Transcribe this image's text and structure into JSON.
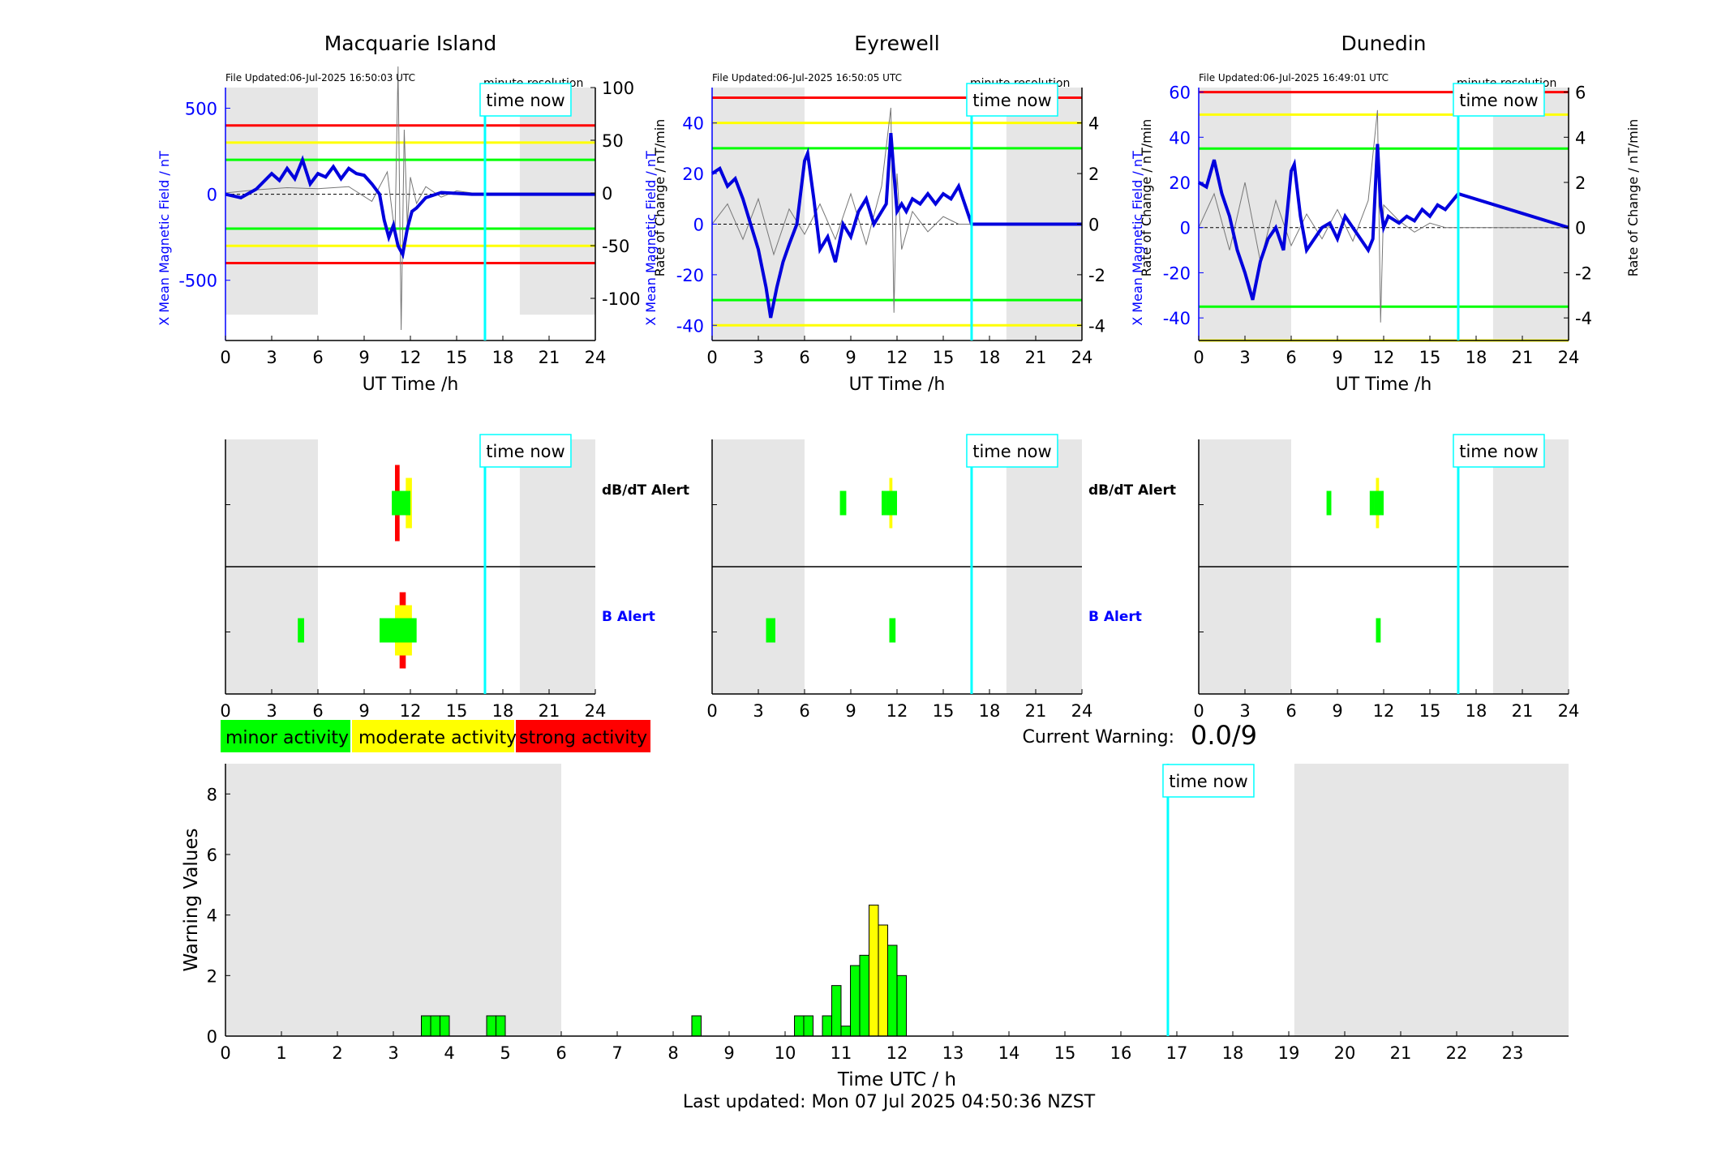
{
  "footer": "Last updated: Mon 07 Jul 2025 04:50:36 NZST",
  "current_warning": {
    "label": "Current Warning:",
    "value": "0.0/9"
  },
  "legend": [
    {
      "label": "minor activity",
      "color": "#00ff00"
    },
    {
      "label": "moderate activity",
      "color": "#ffff00"
    },
    {
      "label": "strong activity",
      "color": "#ff0000"
    }
  ],
  "time_now_label": "time now",
  "chart_data": [
    {
      "id": "macquarie-field",
      "type": "line",
      "title": "Macquarie Island",
      "file_updated": "File Updated:06-Jul-2025 16:50:03 UTC",
      "resolution": "minute resolution",
      "xlabel": "UT Time /h",
      "ylabel": "X Mean Magnetic Field / nT",
      "y2label": "Rate of Change / nT/min",
      "xlim": [
        0,
        24
      ],
      "ylim": [
        -850,
        620
      ],
      "y2lim": [
        -140,
        100
      ],
      "xticks": [
        0,
        3,
        6,
        9,
        12,
        15,
        18,
        21,
        24
      ],
      "yticks": [
        -500,
        0,
        500
      ],
      "y2ticks": [
        -100,
        -50,
        0,
        50,
        100
      ],
      "thresholds": [
        {
          "value": 400,
          "color": "#ff0000"
        },
        {
          "value": 300,
          "color": "#ffff00"
        },
        {
          "value": 200,
          "color": "#00ff00"
        },
        {
          "value": -200,
          "color": "#00ff00"
        },
        {
          "value": -300,
          "color": "#ffff00"
        },
        {
          "value": -400,
          "color": "#ff0000"
        }
      ],
      "shade": [
        [
          0,
          6,
          -700,
          620
        ],
        [
          19.1,
          24,
          -700,
          620
        ]
      ],
      "now": 16.84,
      "series": [
        {
          "values_x": [
            0,
            1,
            2,
            3,
            3.5,
            4,
            4.5,
            5,
            5.5,
            6,
            6.5,
            7,
            7.5,
            8,
            8.5,
            9,
            9.5,
            10,
            10.3,
            10.6,
            10.9,
            11.2,
            11.5,
            11.8,
            12.1,
            12.4,
            13,
            14,
            15,
            16,
            16.84,
            24
          ],
          "values_y": [
            0,
            -20,
            30,
            120,
            80,
            150,
            90,
            200,
            60,
            120,
            100,
            160,
            90,
            150,
            120,
            110,
            60,
            0,
            -150,
            -250,
            -180,
            -300,
            -350,
            -200,
            -100,
            -80,
            -20,
            10,
            5,
            0,
            0,
            0
          ]
        },
        {
          "values_x": [
            0,
            2,
            4,
            6,
            8,
            9.5,
            10.5,
            11,
            11.2,
            11.4,
            11.6,
            11.8,
            12,
            12.4,
            13,
            14,
            15,
            16,
            16.84,
            24
          ],
          "values_y": [
            0,
            3,
            5,
            4,
            6,
            -8,
            20,
            -40,
            120,
            -130,
            60,
            -30,
            15,
            -10,
            6,
            -4,
            2,
            0,
            0,
            0
          ]
        }
      ]
    },
    {
      "id": "eyrewell-field",
      "type": "line",
      "title": "Eyrewell",
      "file_updated": "File Updated:06-Jul-2025 16:50:05 UTC",
      "resolution": "minute resolution",
      "xlabel": "UT Time /h",
      "ylabel": "X Mean Magnetic Field / nT",
      "y2label": "Rate of Change / nT/min",
      "xlim": [
        0,
        24
      ],
      "ylim": [
        -46,
        54
      ],
      "y2lim": [
        -4.6,
        5.4
      ],
      "xticks": [
        0,
        3,
        6,
        9,
        12,
        15,
        18,
        21,
        24
      ],
      "yticks": [
        -40,
        -20,
        0,
        20,
        40
      ],
      "y2ticks": [
        -4,
        -2,
        0,
        2,
        4
      ],
      "thresholds": [
        {
          "value": 50,
          "color": "#ff0000"
        },
        {
          "value": 40,
          "color": "#ffff00"
        },
        {
          "value": 30,
          "color": "#00ff00"
        },
        {
          "value": -30,
          "color": "#00ff00"
        },
        {
          "value": -40,
          "color": "#ffff00"
        }
      ],
      "shade": [
        [
          0,
          6,
          -46,
          54
        ],
        [
          19.1,
          24,
          -46,
          54
        ]
      ],
      "now": 16.84,
      "series": [
        {
          "values_x": [
            0,
            0.5,
            1,
            1.5,
            2,
            2.5,
            3,
            3.5,
            3.8,
            4.2,
            4.6,
            5,
            5.5,
            6,
            6.2,
            6.6,
            7,
            7.5,
            8,
            8.5,
            9,
            9.5,
            10,
            10.5,
            11,
            11.3,
            11.6,
            11.8,
            12,
            12.3,
            12.6,
            13,
            13.5,
            14,
            14.5,
            15,
            15.5,
            16,
            16.84,
            24
          ],
          "values_y": [
            20,
            22,
            15,
            18,
            10,
            0,
            -10,
            -25,
            -37,
            -25,
            -15,
            -8,
            0,
            25,
            28,
            10,
            -10,
            -5,
            -15,
            0,
            -5,
            5,
            10,
            0,
            5,
            8,
            36,
            20,
            5,
            8,
            5,
            10,
            8,
            12,
            8,
            12,
            10,
            15,
            0,
            0
          ]
        },
        {
          "values_x": [
            0,
            1,
            2,
            3,
            4,
            5,
            6,
            7,
            8,
            9,
            10,
            11,
            11.6,
            11.8,
            12,
            12.3,
            13,
            14,
            15,
            16,
            16.84,
            24
          ],
          "values_y": [
            0,
            0.8,
            -0.6,
            1,
            -1.2,
            0.6,
            -0.4,
            0.8,
            -0.6,
            1.2,
            -0.8,
            1.5,
            4.6,
            -3.5,
            2,
            -1,
            0.5,
            -0.3,
            0.3,
            0,
            0,
            0
          ]
        }
      ]
    },
    {
      "id": "dunedin-field",
      "type": "line",
      "title": "Dunedin",
      "file_updated": "File Updated:06-Jul-2025 16:49:01 UTC",
      "resolution": "minute resolution",
      "xlabel": "UT Time /h",
      "ylabel": "X Mean Magnetic Field / nT",
      "y2label": "Rate of Change / nT/min",
      "xlim": [
        0,
        24
      ],
      "ylim": [
        -50,
        62
      ],
      "y2lim": [
        -5,
        6.2
      ],
      "xticks": [
        0,
        3,
        6,
        9,
        12,
        15,
        18,
        21,
        24
      ],
      "yticks": [
        -40,
        -20,
        0,
        20,
        40,
        60
      ],
      "y2ticks": [
        -4,
        -2,
        0,
        2,
        4,
        6
      ],
      "thresholds": [
        {
          "value": 60,
          "color": "#ff0000"
        },
        {
          "value": 50,
          "color": "#ffff00"
        },
        {
          "value": 35,
          "color": "#00ff00"
        },
        {
          "value": -35,
          "color": "#00ff00"
        },
        {
          "value": -50,
          "color": "#ffff00"
        }
      ],
      "shade": [
        [
          0,
          6,
          -50,
          62
        ],
        [
          19.1,
          24,
          -50,
          62
        ]
      ],
      "now": 16.84,
      "series": [
        {
          "values_x": [
            0,
            0.5,
            1,
            1.5,
            2,
            2.5,
            3,
            3.5,
            4,
            4.5,
            5,
            5.5,
            6,
            6.2,
            6.6,
            7,
            7.5,
            8,
            8.5,
            9,
            9.5,
            10,
            10.5,
            11,
            11.3,
            11.6,
            11.8,
            12,
            12.3,
            13,
            13.5,
            14,
            14.5,
            15,
            15.5,
            16,
            16.84,
            24
          ],
          "values_y": [
            20,
            18,
            30,
            15,
            5,
            -10,
            -20,
            -32,
            -15,
            -5,
            0,
            -10,
            25,
            28,
            5,
            -10,
            -5,
            0,
            2,
            -5,
            5,
            0,
            -5,
            -10,
            -5,
            37,
            10,
            0,
            5,
            2,
            5,
            3,
            8,
            5,
            10,
            8,
            15,
            0
          ]
        },
        {
          "values_x": [
            0,
            1,
            2,
            3,
            4,
            5,
            6,
            7,
            8,
            9,
            10,
            11,
            11.6,
            11.8,
            12,
            13,
            14,
            15,
            16,
            16.84,
            24
          ],
          "values_y": [
            0,
            1.5,
            -1,
            2,
            -1.5,
            1.2,
            -0.8,
            0.6,
            -0.5,
            0.8,
            -0.6,
            1.2,
            5.2,
            -4.2,
            1,
            0.3,
            -0.2,
            0.2,
            0,
            0,
            0
          ]
        }
      ]
    },
    {
      "id": "macquarie-alert",
      "type": "bar",
      "row_labels": [
        "dB/dT Alert",
        "B Alert"
      ],
      "xlim": [
        0,
        24
      ],
      "xticks": [
        0,
        3,
        6,
        9,
        12,
        15,
        18,
        21,
        24
      ],
      "now": 16.84,
      "shade": [
        [
          0,
          6
        ],
        [
          19.1,
          24
        ]
      ],
      "bars": [
        {
          "row": 0,
          "x0": 11.0,
          "x1": 11.3,
          "level": 3
        },
        {
          "row": 0,
          "x0": 11.7,
          "x1": 12.1,
          "level": 2
        },
        {
          "row": 0,
          "x0": 10.8,
          "x1": 12.0,
          "level": 1
        },
        {
          "row": 1,
          "x0": 4.7,
          "x1": 5.1,
          "level": 1
        },
        {
          "row": 1,
          "x0": 11.3,
          "x1": 11.7,
          "level": 3
        },
        {
          "row": 1,
          "x0": 11.0,
          "x1": 12.1,
          "level": 2
        },
        {
          "row": 1,
          "x0": 10.0,
          "x1": 12.4,
          "level": 1
        }
      ]
    },
    {
      "id": "eyrewell-alert",
      "type": "bar",
      "row_labels": [
        "dB/dT Alert",
        "B Alert"
      ],
      "xlim": [
        0,
        24
      ],
      "xticks": [
        0,
        3,
        6,
        9,
        12,
        15,
        18,
        21,
        24
      ],
      "now": 16.84,
      "shade": [
        [
          0,
          6
        ],
        [
          19.1,
          24
        ]
      ],
      "bars": [
        {
          "row": 0,
          "x0": 8.3,
          "x1": 8.7,
          "level": 1
        },
        {
          "row": 0,
          "x0": 11.0,
          "x1": 11.3,
          "level": 1
        },
        {
          "row": 0,
          "x0": 11.5,
          "x1": 11.7,
          "level": 2
        },
        {
          "row": 0,
          "x0": 11.3,
          "x1": 12.0,
          "level": 1
        },
        {
          "row": 1,
          "x0": 3.5,
          "x1": 4.1,
          "level": 1
        },
        {
          "row": 1,
          "x0": 11.5,
          "x1": 11.9,
          "level": 1
        }
      ]
    },
    {
      "id": "dunedin-alert",
      "type": "bar",
      "row_labels": [
        "",
        ""
      ],
      "xlim": [
        0,
        24
      ],
      "xticks": [
        0,
        3,
        6,
        9,
        12,
        15,
        18,
        21,
        24
      ],
      "now": 16.84,
      "shade": [
        [
          0,
          6
        ],
        [
          19.1,
          24
        ]
      ],
      "bars": [
        {
          "row": 0,
          "x0": 8.3,
          "x1": 8.6,
          "level": 1
        },
        {
          "row": 0,
          "x0": 11.1,
          "x1": 11.4,
          "level": 1
        },
        {
          "row": 0,
          "x0": 11.5,
          "x1": 11.7,
          "level": 2
        },
        {
          "row": 0,
          "x0": 11.4,
          "x1": 12.0,
          "level": 1
        },
        {
          "row": 1,
          "x0": 11.5,
          "x1": 11.8,
          "level": 1
        }
      ]
    },
    {
      "id": "warning-values",
      "type": "bar",
      "xlabel": "Time UTC / h",
      "ylabel": "Warning Values",
      "xlim": [
        0,
        24
      ],
      "ylim": [
        0,
        9
      ],
      "xticks": [
        0,
        1,
        2,
        3,
        4,
        5,
        6,
        7,
        8,
        9,
        10,
        11,
        12,
        13,
        14,
        15,
        16,
        17,
        18,
        19,
        20,
        21,
        22,
        23
      ],
      "yticks": [
        0,
        2,
        4,
        6,
        8
      ],
      "now": 16.84,
      "shade": [
        [
          0,
          6
        ],
        [
          19.1,
          24
        ]
      ],
      "bar_width": 0.1667,
      "bars": [
        {
          "x": 3.5,
          "v": 0.67,
          "level": 1
        },
        {
          "x": 3.667,
          "v": 0.67,
          "level": 1
        },
        {
          "x": 3.833,
          "v": 0.67,
          "level": 1
        },
        {
          "x": 4.667,
          "v": 0.67,
          "level": 1
        },
        {
          "x": 4.833,
          "v": 0.67,
          "level": 1
        },
        {
          "x": 8.333,
          "v": 0.67,
          "level": 1
        },
        {
          "x": 10.167,
          "v": 0.67,
          "level": 1
        },
        {
          "x": 10.333,
          "v": 0.67,
          "level": 1
        },
        {
          "x": 10.667,
          "v": 0.67,
          "level": 1
        },
        {
          "x": 10.833,
          "v": 1.67,
          "level": 1
        },
        {
          "x": 11.0,
          "v": 0.33,
          "level": 1
        },
        {
          "x": 11.167,
          "v": 2.33,
          "level": 1
        },
        {
          "x": 11.333,
          "v": 2.67,
          "level": 1
        },
        {
          "x": 11.5,
          "v": 4.33,
          "level": 2
        },
        {
          "x": 11.667,
          "v": 3.67,
          "level": 2
        },
        {
          "x": 11.833,
          "v": 3.0,
          "level": 1
        },
        {
          "x": 12.0,
          "v": 2.0,
          "level": 1
        }
      ]
    }
  ]
}
